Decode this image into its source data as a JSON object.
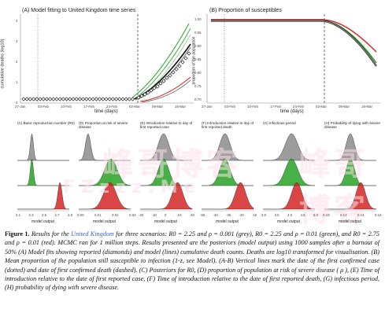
{
  "panelA": {
    "title": "(A) Model fitting to United Kingdom time series",
    "ylabel": "cumulative deaths (log10)",
    "xlabel": "time (days)",
    "yticks": [
      "0",
      "1",
      "2",
      "3",
      "4"
    ],
    "xticks": [
      "27-Jan",
      "03-Feb",
      "10-Feb",
      "17-Feb",
      "24-Feb",
      "02-Mar",
      "09-Mar",
      "16-Mar"
    ]
  },
  "panelB": {
    "title": "(B) Proportion of susceptibles",
    "ylabel": "proportion of the population",
    "xlabel": "time (days)",
    "yticks": [
      "1.00",
      "0.95",
      "0.90",
      "0.85",
      "0.80",
      "0.75",
      "0.70"
    ],
    "xticks": [
      "27-Jan",
      "03-Feb",
      "10-Feb",
      "17-Feb",
      "24-Feb",
      "02-Mar",
      "09-Mar",
      "16-Mar"
    ]
  },
  "small_panels": [
    {
      "title": "(C) Basic reproduction number (R0)",
      "xlabel": "model output",
      "xticks": [
        "2.1",
        "2.3",
        "2.5",
        "2.7",
        "2.9"
      ]
    },
    {
      "title": "(D) Proportion at risk of severe disease",
      "xlabel": "model output",
      "xticks": [
        "0.00",
        "0.01",
        "0.02",
        "0.03"
      ]
    },
    {
      "title": "(E) Introduction relative to day of first reported case",
      "xlabel": "model output",
      "xticks": [
        "-20",
        "-10",
        "0",
        "10",
        "20"
      ]
    },
    {
      "title": "(F) Introduction relative to day of first reported death",
      "xlabel": "model output",
      "xticks": [
        "-50",
        "-40",
        "-30",
        "-20",
        "-10"
      ]
    },
    {
      "title": "(G) Infectious period",
      "xlabel": "model output",
      "xticks": [
        "3.0",
        "3.5",
        "4.0",
        "4.5",
        "5.0"
      ]
    },
    {
      "title": "(H) Probability of dying with severe disease",
      "xlabel": "model output",
      "xticks": [
        "0.10",
        "0.12",
        "0.14",
        "0.16"
      ]
    }
  ],
  "watermark": {
    "chars": "峰哥博客",
    "latin": "F Z z z z . M e"
  },
  "caption": {
    "label": "Figure 1.",
    "text1": " Results for the ",
    "country": "United Kingdom",
    "text2": " for three scenarios: R0 = 2.25 and ρ = 0.001 (grey), R0 = 2.25 and ρ = 0.01 (green), and R0 = 2.75 and ρ = 0.01 (red). MCMC ran for 1 million steps. Results presented are the posteriors (model output) using 1000 samples after a burnout of 50% (A) Model fits showing reported (diamonds) and model (lines) cumulative death counts. Deaths are log10 transformed for visualisation. (B) Mean proportion of the population still susceptible to infection (1-z, see Model). (A-B) Vertical lines mark the date of the first confirmed case (dotted) and date of first confirmed death (dashed). (C) Posteriors for R0, (D) proportion of population at risk of severe disease ( ρ ), (E) Time of introduction relative to the date of first reported case, (F) Time of introduction relative to the date of first reported death, (G) infectious period, (H) probability of dying with severe disease."
  },
  "colors": {
    "grey": "#8c8c8c",
    "green": "#27a327",
    "red": "#d42525",
    "link": "#3b5fcf"
  }
}
